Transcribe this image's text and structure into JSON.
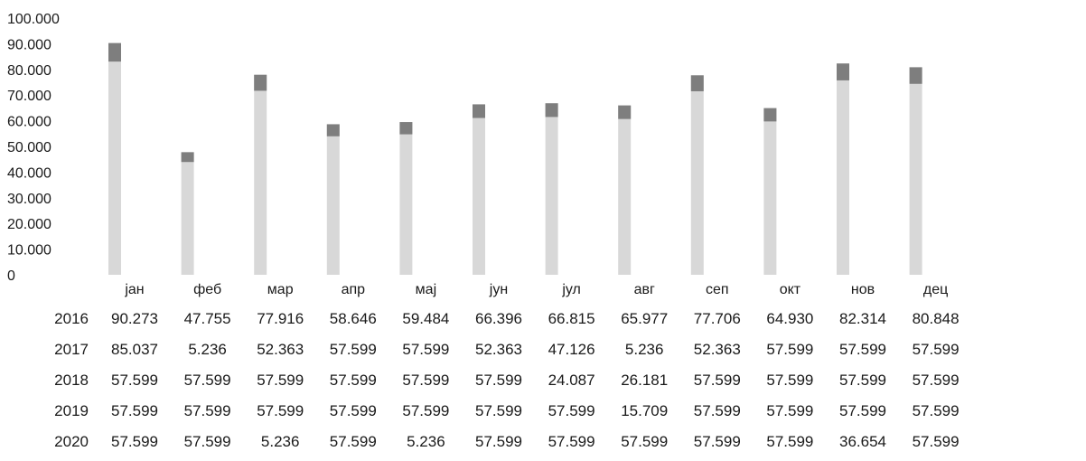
{
  "chart_data": {
    "type": "bar",
    "categories": [
      "јан",
      "феб",
      "мар",
      "апр",
      "мај",
      "јун",
      "јул",
      "авг",
      "сеп",
      "окт",
      "нов",
      "дец"
    ],
    "ylim": [
      0,
      100000
    ],
    "yticks": [
      "100.000",
      "90.000",
      "80.000",
      "70.000",
      "60.000",
      "50.000",
      "40.000",
      "30.000",
      "20.000",
      "10.000",
      "0"
    ],
    "series": [
      {
        "name": "2016",
        "values": [
          90273,
          47755,
          77916,
          58646,
          59484,
          66396,
          66815,
          65977,
          77706,
          64930,
          82314,
          80848
        ],
        "labels": [
          "90.273",
          "47.755",
          "77.916",
          "58.646",
          "59.484",
          "66.396",
          "66.815",
          "65.977",
          "77.706",
          "64.930",
          "82.314",
          "80.848"
        ]
      },
      {
        "name": "2017",
        "values": [
          85037,
          5236,
          52363,
          57599,
          57599,
          52363,
          47126,
          5236,
          52363,
          57599,
          57599,
          57599
        ],
        "labels": [
          "85.037",
          "5.236",
          "52.363",
          "57.599",
          "57.599",
          "52.363",
          "47.126",
          "5.236",
          "52.363",
          "57.599",
          "57.599",
          "57.599"
        ]
      },
      {
        "name": "2018",
        "values": [
          57599,
          57599,
          57599,
          57599,
          57599,
          57599,
          24087,
          26181,
          57599,
          57599,
          57599,
          57599
        ],
        "labels": [
          "57.599",
          "57.599",
          "57.599",
          "57.599",
          "57.599",
          "57.599",
          "24.087",
          "26.181",
          "57.599",
          "57.599",
          "57.599",
          "57.599"
        ]
      },
      {
        "name": "2019",
        "values": [
          57599,
          57599,
          57599,
          57599,
          57599,
          57599,
          57599,
          15709,
          57599,
          57599,
          57599,
          57599
        ],
        "labels": [
          "57.599",
          "57.599",
          "57.599",
          "57.599",
          "57.599",
          "57.599",
          "57.599",
          "15.709",
          "57.599",
          "57.599",
          "57.599",
          "57.599"
        ]
      },
      {
        "name": "2020",
        "values": [
          57599,
          57599,
          5236,
          57599,
          5236,
          57599,
          57599,
          57599,
          57599,
          57599,
          36654,
          57599
        ],
        "labels": [
          "57.599",
          "57.599",
          "5.236",
          "57.599",
          "5.236",
          "57.599",
          "57.599",
          "57.599",
          "57.599",
          "57.599",
          "36.654",
          "57.599"
        ]
      }
    ],
    "colors": {
      "bar": "#b8b8b8",
      "bar_top": "#6e6e6e",
      "text": "#1a1a1a"
    }
  }
}
